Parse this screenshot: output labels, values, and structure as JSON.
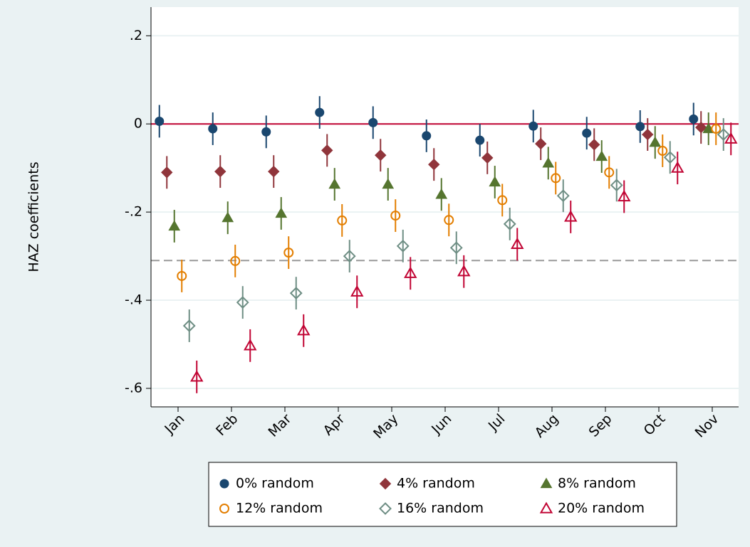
{
  "chart_data": {
    "type": "dot-errorbar",
    "y_label": "HAZ coefficients",
    "categories": [
      "Jan",
      "Feb",
      "Mar",
      "Apr",
      "May",
      "Jun",
      "Jul",
      "Aug",
      "Sep",
      "Oct",
      "Nov"
    ],
    "ylim": [
      -0.642,
      0.265
    ],
    "yticks": [
      {
        "value": 0.2,
        "label": ".2"
      },
      0,
      {
        "value": -0.2,
        "label": "-.2"
      },
      {
        "value": -0.4,
        "label": "-.4"
      },
      {
        "value": -0.6,
        "label": "-.6"
      }
    ],
    "grid": true,
    "legend": "bottom",
    "reference_lines": [
      {
        "value": 0,
        "color": "#c10534",
        "style": "solid"
      },
      {
        "value": -0.31,
        "color": "#999999",
        "style": "dashed"
      }
    ],
    "series": [
      {
        "name": "0% random",
        "color": "#1a476f",
        "marker": "circle",
        "hollow": false,
        "values": [
          0.006,
          -0.011,
          -0.018,
          0.026,
          0.003,
          -0.027,
          -0.037,
          -0.005,
          -0.021,
          -0.006,
          0.011
        ],
        "errors": [
          0.037,
          0.037,
          0.037,
          0.037,
          0.037,
          0.037,
          0.037,
          0.037,
          0.037,
          0.037,
          0.037
        ]
      },
      {
        "name": "4% random",
        "color": "#90353b",
        "marker": "diamond",
        "hollow": false,
        "values": [
          -0.11,
          -0.108,
          -0.108,
          -0.06,
          -0.071,
          -0.092,
          -0.077,
          -0.045,
          -0.047,
          -0.024,
          -0.008
        ],
        "errors": [
          0.037,
          0.037,
          0.037,
          0.037,
          0.037,
          0.037,
          0.037,
          0.037,
          0.037,
          0.037,
          0.037
        ]
      },
      {
        "name": "8% random",
        "color": "#55752f",
        "marker": "triangle",
        "hollow": false,
        "values": [
          -0.232,
          -0.213,
          -0.203,
          -0.137,
          -0.137,
          -0.16,
          -0.132,
          -0.089,
          -0.074,
          -0.042,
          -0.011
        ],
        "errors": [
          0.037,
          0.037,
          0.037,
          0.037,
          0.037,
          0.037,
          0.037,
          0.037,
          0.037,
          0.037,
          0.037
        ]
      },
      {
        "name": "12% random",
        "color": "#e37e00",
        "marker": "circle",
        "hollow": true,
        "values": [
          -0.345,
          -0.311,
          -0.292,
          -0.219,
          -0.208,
          -0.218,
          -0.173,
          -0.123,
          -0.11,
          -0.061,
          -0.011
        ],
        "errors": [
          0.037,
          0.037,
          0.037,
          0.037,
          0.037,
          0.037,
          0.037,
          0.037,
          0.037,
          0.037,
          0.037
        ]
      },
      {
        "name": "16% random",
        "color": "#6e8e84",
        "marker": "diamond",
        "hollow": true,
        "values": [
          -0.458,
          -0.405,
          -0.384,
          -0.3,
          -0.277,
          -0.281,
          -0.227,
          -0.163,
          -0.139,
          -0.076,
          -0.024
        ],
        "errors": [
          0.037,
          0.037,
          0.037,
          0.037,
          0.037,
          0.037,
          0.037,
          0.037,
          0.037,
          0.037,
          0.037
        ]
      },
      {
        "name": "20% random",
        "color": "#c10534",
        "marker": "triangle",
        "hollow": true,
        "values": [
          -0.574,
          -0.503,
          -0.469,
          -0.381,
          -0.339,
          -0.335,
          -0.273,
          -0.211,
          -0.165,
          -0.1,
          -0.034
        ],
        "errors": [
          0.037,
          0.037,
          0.037,
          0.037,
          0.037,
          0.037,
          0.037,
          0.037,
          0.037,
          0.037,
          0.037
        ]
      }
    ]
  }
}
